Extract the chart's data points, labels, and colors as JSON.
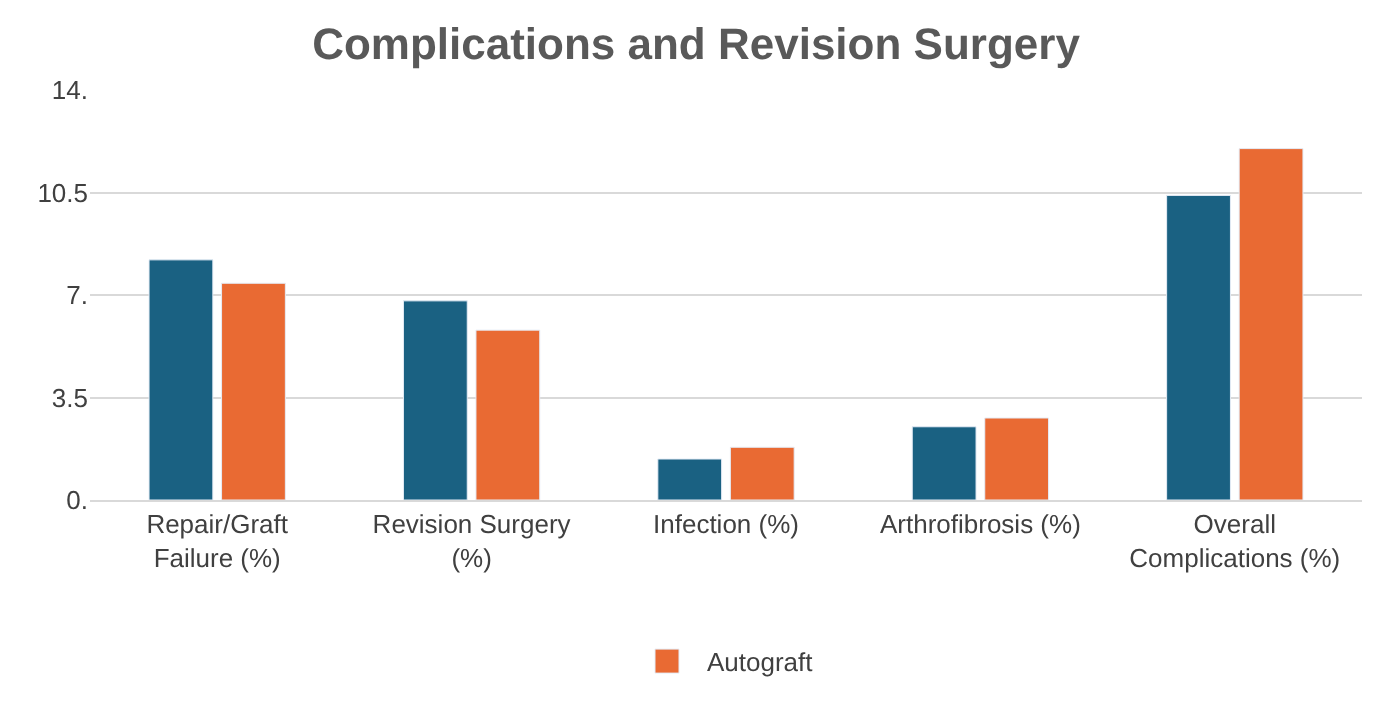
{
  "chart_data": {
    "type": "bar",
    "title": "Complications and Revision Surgery",
    "categories": [
      "Repair/Graft Failure (%)",
      "Revision Surgery (%)",
      "Infection (%)",
      "Arthrofibrosis (%)",
      "Overall Complications (%)"
    ],
    "series": [
      {
        "color": "#1a6182",
        "values": [
          8.2,
          6.8,
          1.4,
          2.5,
          10.4
        ]
      },
      {
        "name": "Autograft",
        "color": "#e96a33",
        "values": [
          7.4,
          5.8,
          1.8,
          2.8,
          12.0
        ]
      }
    ],
    "ylim": [
      0,
      14
    ],
    "yticks": [
      {
        "value": 0,
        "label": "0."
      },
      3.5,
      {
        "value": 7,
        "label": "7."
      },
      10.5,
      {
        "value": 14,
        "label": "14."
      }
    ],
    "grid": "y",
    "legend": "bottom"
  }
}
